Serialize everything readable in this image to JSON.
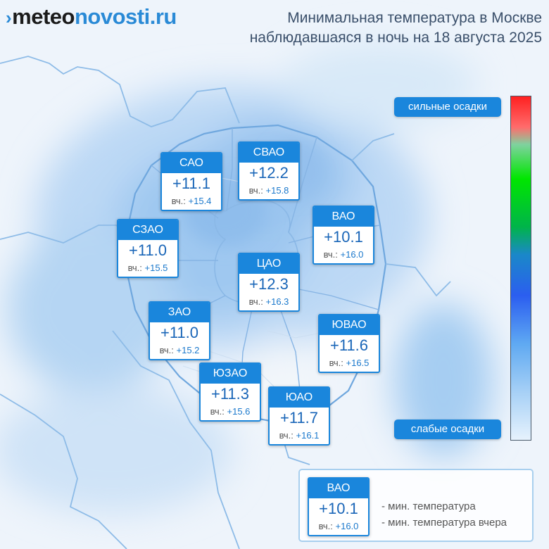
{
  "logo": {
    "mark": "›",
    "part1": "meteo",
    "part2": "novosti.ru"
  },
  "title": {
    "line1": "Минимальная температура в Москве",
    "line2": "наблюдавшаяся в ночь на 18 августа 2025"
  },
  "precip_scale": {
    "strong_label": "сильные осадки",
    "weak_label": "слабые осадки",
    "colors": [
      "#ff2020",
      "#00e600",
      "#2b5ef0",
      "#e6f2fd"
    ]
  },
  "districts": [
    {
      "id": "sao",
      "name": "САО",
      "temp": "+11.1",
      "yest_label": "вч.:",
      "yest_value": "+15.4"
    },
    {
      "id": "svao",
      "name": "СВАО",
      "temp": "+12.2",
      "yest_label": "вч.:",
      "yest_value": "+15.8"
    },
    {
      "id": "vao",
      "name": "ВАО",
      "temp": "+10.1",
      "yest_label": "вч.:",
      "yest_value": "+16.0"
    },
    {
      "id": "szao",
      "name": "СЗАО",
      "temp": "+11.0",
      "yest_label": "вч.:",
      "yest_value": "+15.5"
    },
    {
      "id": "cao",
      "name": "ЦАО",
      "temp": "+12.3",
      "yest_label": "вч.:",
      "yest_value": "+16.3"
    },
    {
      "id": "zao",
      "name": "ЗАО",
      "temp": "+11.0",
      "yest_label": "вч.:",
      "yest_value": "+15.2"
    },
    {
      "id": "yuvao",
      "name": "ЮВАО",
      "temp": "+11.6",
      "yest_label": "вч.:",
      "yest_value": "+16.5"
    },
    {
      "id": "yuzao",
      "name": "ЮЗАО",
      "temp": "+11.3",
      "yest_label": "вч.:",
      "yest_value": "+15.6"
    },
    {
      "id": "yuao",
      "name": "ЮАО",
      "temp": "+11.7",
      "yest_label": "вч.:",
      "yest_value": "+16.1"
    }
  ],
  "legend": {
    "sample": {
      "name": "ВАО",
      "temp": "+10.1",
      "yest_label": "вч.:",
      "yest_value": "+16.0"
    },
    "min_temp_text": "- мин. температура",
    "min_temp_yesterday_text": "- мин. температура вчера"
  }
}
